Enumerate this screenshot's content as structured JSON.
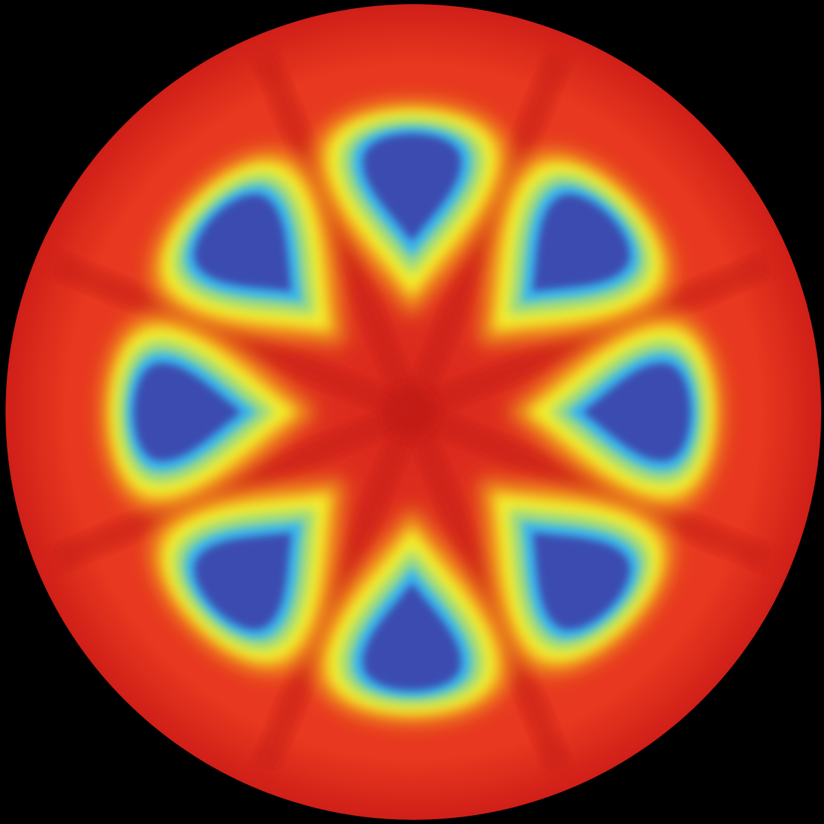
{
  "figure": {
    "background_color": "#000000",
    "colormap": [
      "#3b4cb0",
      "#37b6ee",
      "#8fd690",
      "#f4f02c",
      "#f29c1c",
      "#e8321e",
      "#cf1e17"
    ],
    "lobe_count": 8,
    "lobes": [
      {
        "id": "lobe-north"
      },
      {
        "id": "lobe-northeast"
      },
      {
        "id": "lobe-east"
      },
      {
        "id": "lobe-southeast"
      },
      {
        "id": "lobe-south"
      },
      {
        "id": "lobe-southwest"
      },
      {
        "id": "lobe-west"
      },
      {
        "id": "lobe-northwest"
      }
    ]
  }
}
